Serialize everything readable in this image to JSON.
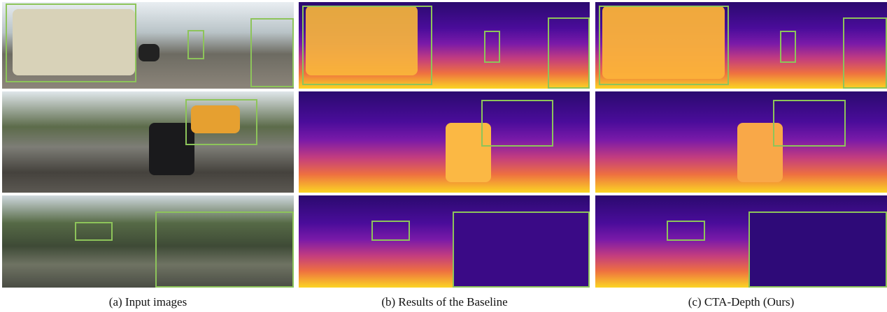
{
  "columns": [
    {
      "caption": "(a) Input images"
    },
    {
      "caption": "(b) Results of the Baseline"
    },
    {
      "caption": "(c) CTA-Depth (Ours)"
    }
  ]
}
